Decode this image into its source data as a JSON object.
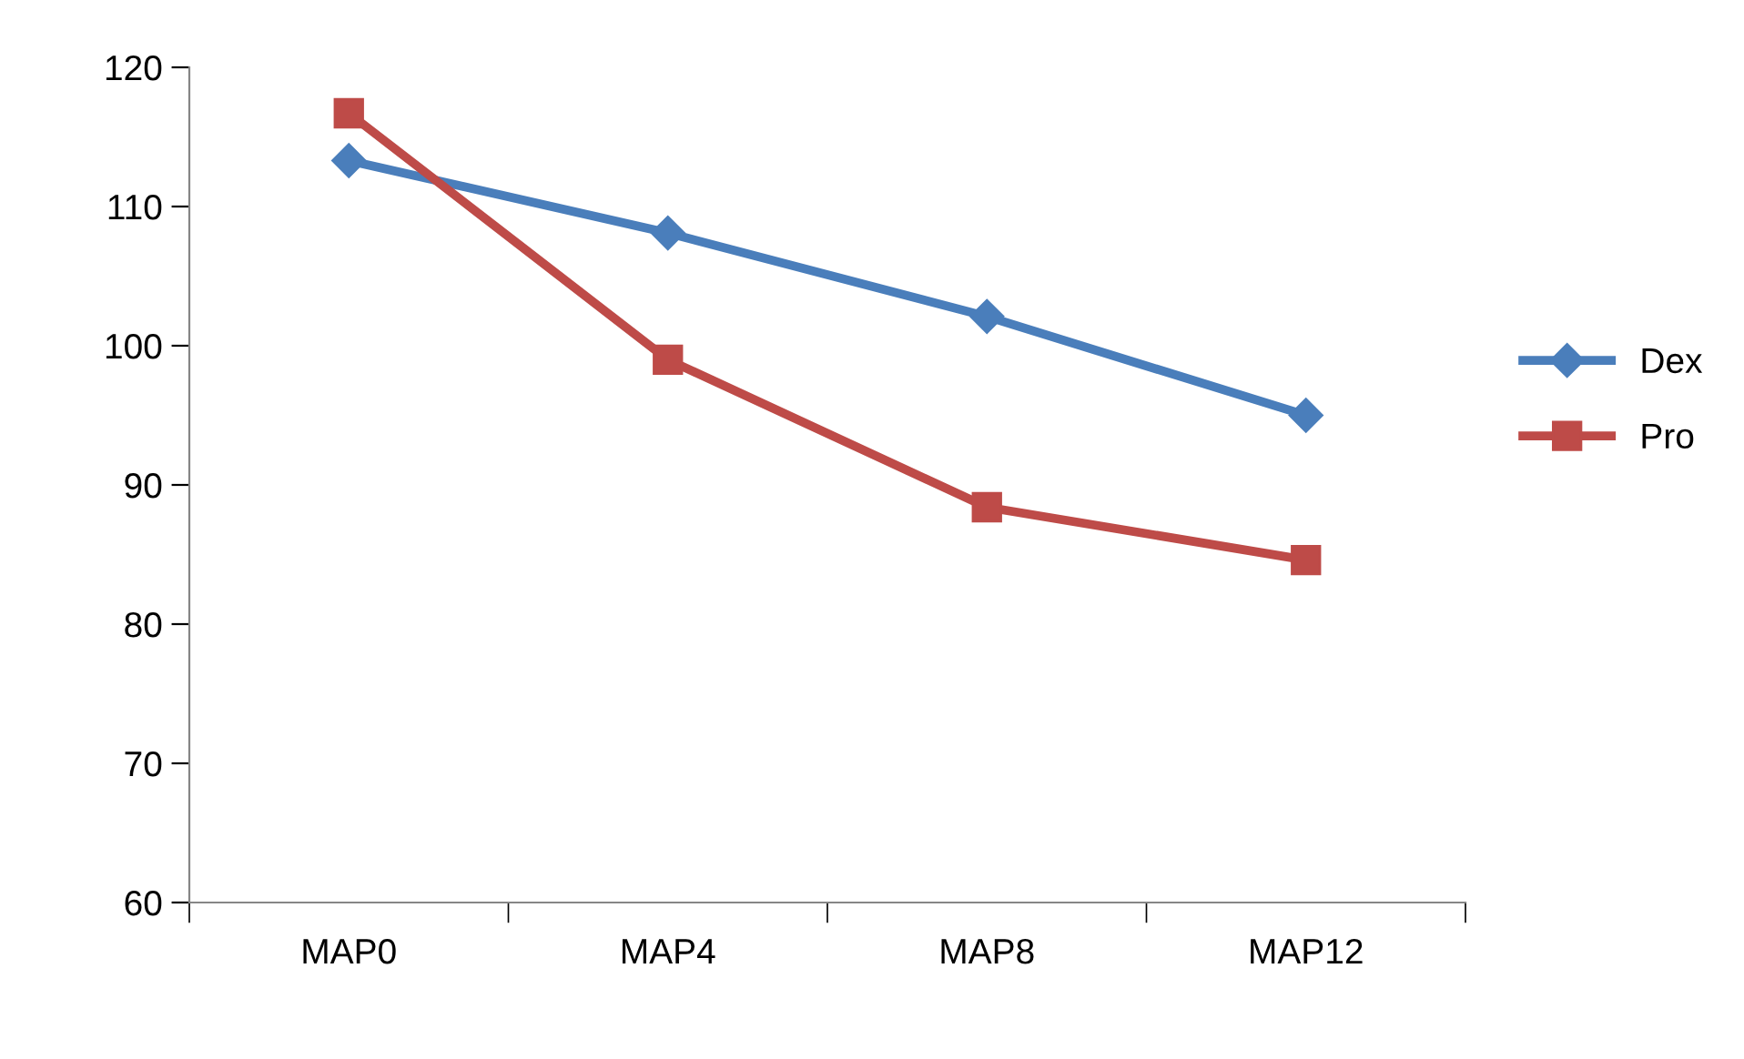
{
  "chart_data": {
    "type": "line",
    "categories": [
      "MAP0",
      "MAP4",
      "MAP8",
      "MAP12"
    ],
    "series": [
      {
        "name": "Dex",
        "color": "#4a7ebb",
        "marker": "diamond",
        "values": [
          113.3,
          108.1,
          102.1,
          95.0
        ]
      },
      {
        "name": "Pro",
        "color": "#be4b48",
        "marker": "square",
        "values": [
          116.7,
          99.0,
          88.4,
          84.6
        ]
      }
    ],
    "ylim": [
      60,
      120
    ],
    "yticks": [
      60,
      70,
      80,
      90,
      100,
      110,
      120
    ],
    "grid": false,
    "legend": "right",
    "line_style": "solid"
  }
}
